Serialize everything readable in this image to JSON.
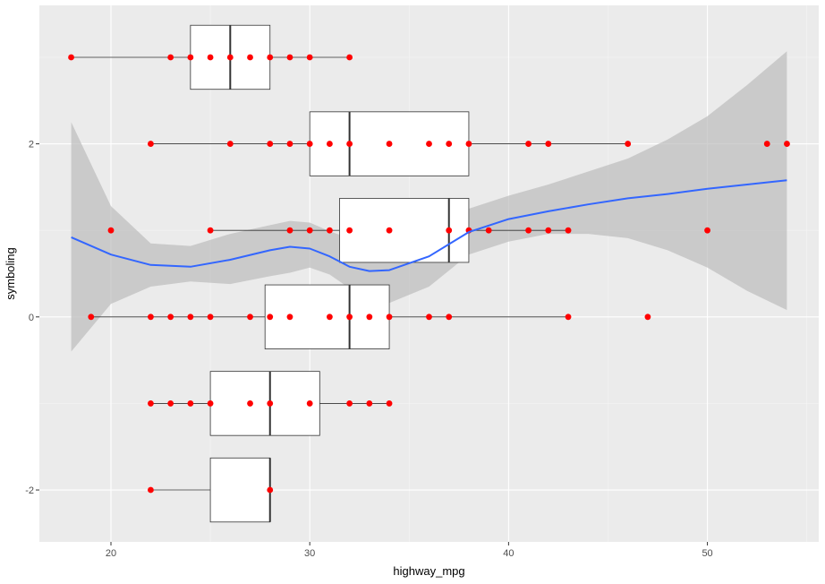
{
  "chart_data": {
    "type": "box",
    "title": "",
    "xlabel": "highway_mpg",
    "ylabel": "symboling",
    "xlim": [
      16.4,
      55.6
    ],
    "ylim": [
      -2.6,
      3.6
    ],
    "x_ticks": [
      20,
      30,
      40,
      50
    ],
    "y_ticks": [
      -2,
      0,
      2
    ],
    "grid": true,
    "legend": "none",
    "boxes": [
      {
        "y": -2,
        "whisker_low": 22,
        "q1": 25,
        "median": 28,
        "q3": 28,
        "whisker_high": 28
      },
      {
        "y": -1,
        "whisker_low": 22,
        "q1": 25,
        "median": 28,
        "q3": 30.5,
        "whisker_high": 34
      },
      {
        "y": 0,
        "whisker_low": 19,
        "q1": 27.75,
        "median": 32,
        "q3": 34,
        "whisker_high": 43
      },
      {
        "y": 1,
        "whisker_low": 25,
        "q1": 31.5,
        "median": 37,
        "q3": 38,
        "whisker_high": 43
      },
      {
        "y": 2,
        "whisker_low": 22,
        "q1": 30,
        "median": 32,
        "q3": 38,
        "whisker_high": 46
      },
      {
        "y": 3,
        "whisker_low": 18,
        "q1": 24,
        "median": 26,
        "q3": 28,
        "whisker_high": 32
      }
    ],
    "points": [
      {
        "y": -2,
        "x": [
          22,
          28
        ]
      },
      {
        "y": -1,
        "x": [
          22,
          23,
          24,
          25,
          27,
          28,
          30,
          32,
          33,
          34
        ]
      },
      {
        "y": 0,
        "x": [
          19,
          22,
          23,
          24,
          25,
          27,
          28,
          29,
          31,
          32,
          33,
          34,
          36,
          37,
          43,
          47
        ]
      },
      {
        "y": 1,
        "x": [
          20,
          25,
          29,
          30,
          31,
          32,
          34,
          37,
          38,
          39,
          41,
          42,
          43,
          50
        ]
      },
      {
        "y": 2,
        "x": [
          22,
          26,
          28,
          29,
          30,
          31,
          32,
          34,
          36,
          37,
          38,
          41,
          42,
          46,
          53,
          54
        ]
      },
      {
        "y": 3,
        "x": [
          18,
          23,
          24,
          25,
          26,
          27,
          28,
          29,
          30,
          32
        ]
      }
    ],
    "smooth": {
      "method": "loess",
      "x": [
        18,
        20,
        22,
        24,
        26,
        28,
        29,
        30,
        31,
        32,
        33,
        34,
        36,
        38,
        40,
        42,
        44,
        46,
        48,
        50,
        52,
        54
      ],
      "y": [
        0.92,
        0.72,
        0.6,
        0.58,
        0.66,
        0.77,
        0.81,
        0.79,
        0.7,
        0.58,
        0.53,
        0.54,
        0.7,
        0.98,
        1.13,
        1.22,
        1.3,
        1.37,
        1.42,
        1.48,
        1.53,
        1.58
      ],
      "lower": [
        -0.4,
        0.15,
        0.35,
        0.41,
        0.38,
        0.47,
        0.51,
        0.57,
        0.49,
        0.33,
        0.19,
        0.16,
        0.35,
        0.72,
        0.87,
        0.96,
        0.96,
        0.91,
        0.77,
        0.57,
        0.3,
        0.08
      ],
      "upper": [
        2.25,
        1.28,
        0.85,
        0.82,
        0.96,
        1.06,
        1.11,
        1.09,
        0.99,
        0.91,
        0.9,
        0.93,
        1.01,
        1.25,
        1.4,
        1.53,
        1.68,
        1.83,
        2.05,
        2.32,
        2.68,
        3.07
      ]
    },
    "colors": {
      "panel": "#ebebeb",
      "grid_major": "#ffffff",
      "grid_minor": "#f5f5f5",
      "box_fill": "#ffffff",
      "box_stroke": "#333333",
      "points": "#ff0000",
      "smooth_line": "#3366ff",
      "ribbon": "#bcbcbc"
    }
  }
}
